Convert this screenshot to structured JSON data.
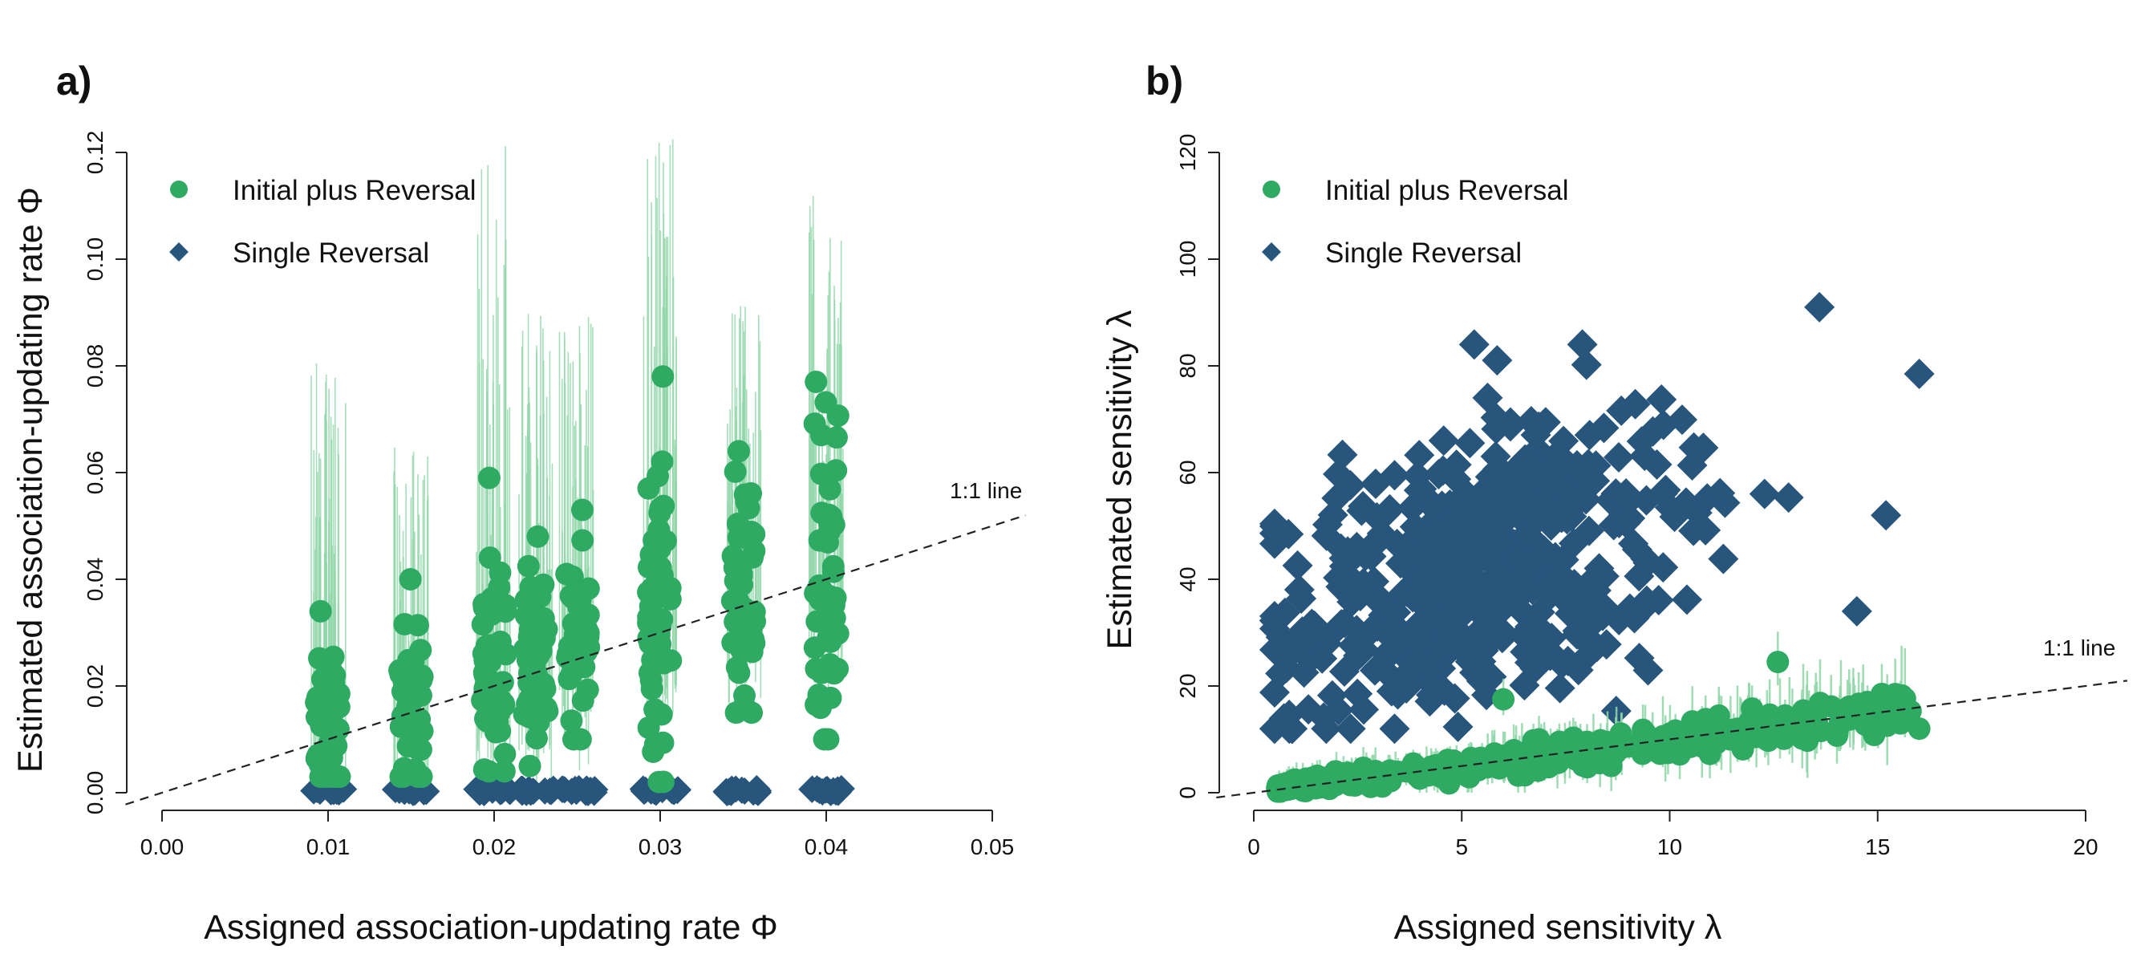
{
  "colors": {
    "initial_plus_reversal": "#2eaa62",
    "initial_plus_reversal_error": "#8fd6a8",
    "single_reversal": "#27557c",
    "axis": "#222222"
  },
  "chart_data": [
    {
      "panel_label": "a)",
      "type": "scatter",
      "xlabel": "Assigned association-updating rate Φ",
      "ylabel": "Estimated association-updating rate Φ",
      "xlim": [
        0.0,
        0.05
      ],
      "ylim": [
        0.0,
        0.12
      ],
      "x_ticks": [
        "0.00",
        "0.01",
        "0.02",
        "0.03",
        "0.04",
        "0.05"
      ],
      "y_ticks": [
        "0.00",
        "0.02",
        "0.04",
        "0.06",
        "0.08",
        "0.10",
        "0.12"
      ],
      "reference_line": {
        "label": "1:1 line",
        "slope": 1,
        "intercept": 0,
        "style": "dashed"
      },
      "legend": {
        "position": "top-left",
        "entries": [
          {
            "label": "Initial plus Reversal",
            "marker": "circle"
          },
          {
            "label": "Single Reversal",
            "marker": "diamond"
          }
        ]
      },
      "groups": [
        {
          "x": 0.01,
          "ip_mean": 0.013,
          "ip_min": 0.003,
          "ip_max": 0.034,
          "ip_err_max": 0.081,
          "sr_value": 0.0
        },
        {
          "x": 0.015,
          "ip_mean": 0.016,
          "ip_min": 0.003,
          "ip_max": 0.04,
          "ip_err_max": 0.07,
          "sr_value": 0.0
        },
        {
          "x": 0.02,
          "ip_mean": 0.022,
          "ip_min": 0.004,
          "ip_max": 0.059,
          "ip_err_max": 0.125,
          "sr_value": 0.0
        },
        {
          "x": 0.0225,
          "ip_mean": 0.024,
          "ip_min": 0.005,
          "ip_max": 0.048,
          "ip_err_max": 0.09,
          "sr_value": 0.0
        },
        {
          "x": 0.025,
          "ip_mean": 0.026,
          "ip_min": 0.01,
          "ip_max": 0.053,
          "ip_err_max": 0.09,
          "sr_value": 0.0
        },
        {
          "x": 0.03,
          "ip_mean": 0.032,
          "ip_min": 0.002,
          "ip_max": 0.078,
          "ip_err_max": 0.125,
          "sr_value": 0.0
        },
        {
          "x": 0.035,
          "ip_mean": 0.036,
          "ip_min": 0.015,
          "ip_max": 0.064,
          "ip_err_max": 0.095,
          "sr_value": 0.0
        },
        {
          "x": 0.04,
          "ip_mean": 0.04,
          "ip_min": 0.01,
          "ip_max": 0.077,
          "ip_err_max": 0.113,
          "sr_value": 0.0
        }
      ]
    },
    {
      "panel_label": "b)",
      "type": "scatter",
      "xlabel": "Assigned sensitivity λ",
      "ylabel": "Estimated sensitivity λ",
      "xlim": [
        0,
        20
      ],
      "ylim": [
        0,
        120
      ],
      "x_ticks": [
        "0",
        "5",
        "10",
        "15",
        "20"
      ],
      "y_ticks": [
        "0",
        "20",
        "40",
        "60",
        "80",
        "100",
        "120"
      ],
      "reference_line": {
        "label": "1:1 line",
        "slope": 1,
        "intercept": 0,
        "style": "dashed"
      },
      "legend": {
        "position": "top-left",
        "entries": [
          {
            "label": "Initial plus Reversal",
            "marker": "circle"
          },
          {
            "label": "Single Reversal",
            "marker": "diamond"
          }
        ]
      },
      "initial_plus_reversal_trend": {
        "x_range": [
          0.5,
          16
        ],
        "slope": 0.95,
        "intercept": 0.2
      },
      "initial_plus_reversal_outliers": [
        {
          "x": 6.0,
          "y": 17.5
        },
        {
          "x": 12.6,
          "y": 24.5
        },
        {
          "x": 15.1,
          "y": 18.5
        },
        {
          "x": 16.0,
          "y": 12.0
        }
      ],
      "single_reversal_cloud": {
        "x_range": [
          0.5,
          16
        ],
        "y_range": [
          12,
          92
        ],
        "centroid": [
          5.5,
          42
        ]
      },
      "single_reversal_outliers": [
        {
          "x": 16.0,
          "y": 78.5
        },
        {
          "x": 13.6,
          "y": 91.0
        },
        {
          "x": 5.3,
          "y": 84.0
        },
        {
          "x": 7.9,
          "y": 84.0
        },
        {
          "x": 15.2,
          "y": 52.0
        },
        {
          "x": 14.5,
          "y": 34.0
        }
      ]
    }
  ]
}
